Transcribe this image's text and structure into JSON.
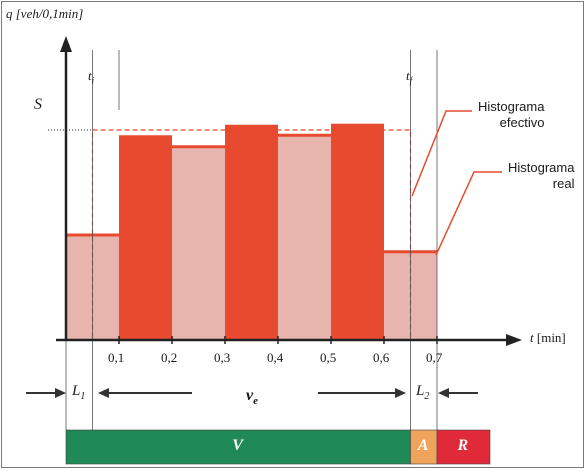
{
  "labels": {
    "y_axis": "q [veh/0,1min]",
    "x_axis": "t [min]",
    "s": "S",
    "ti": "t",
    "ti_sub": "i",
    "tf": "t",
    "tf_sub": "f",
    "l1": "L",
    "l1_sub": "1",
    "l2": "L",
    "l2_sub": "2",
    "ve": "v",
    "ve_sub": "e"
  },
  "legend": {
    "effective_line1": "Histograma",
    "effective_line2": "efectivo",
    "real_line1": "Histograma",
    "real_line2": "real"
  },
  "phase_bar": [
    {
      "label": "V",
      "color": "#1f8a55",
      "start": 0,
      "end": 0.65
    },
    {
      "label": "A",
      "color": "#f0a35a",
      "start": 0.65,
      "end": 0.7
    },
    {
      "label": "R",
      "color": "#e02a3a",
      "start": 0.7,
      "end": 0.8
    }
  ],
  "chart_data": {
    "type": "bar",
    "x_ticks": [
      "0,1",
      "0,2",
      "0,3",
      "0,4",
      "0,5",
      "0,6",
      "0,7"
    ],
    "bins": [
      {
        "start": 0.0,
        "end": 0.1,
        "height": 1.0,
        "fill": "light"
      },
      {
        "start": 0.1,
        "end": 0.2,
        "height": 1.95,
        "fill": "dark"
      },
      {
        "start": 0.2,
        "end": 0.3,
        "height": 1.84,
        "fill": "light"
      },
      {
        "start": 0.3,
        "end": 0.4,
        "height": 2.05,
        "fill": "dark"
      },
      {
        "start": 0.4,
        "end": 0.5,
        "height": 1.95,
        "fill": "light"
      },
      {
        "start": 0.5,
        "end": 0.6,
        "height": 2.06,
        "fill": "dark"
      },
      {
        "start": 0.6,
        "end": 0.7,
        "height": 0.84,
        "fill": "light"
      }
    ],
    "effective": {
      "start": 0.05,
      "end": 0.65,
      "height": 2.0
    },
    "ymax": 2.2,
    "colors": {
      "dark": "#e84a2f",
      "light": "#e8b4ae",
      "edge": "#e84a2f"
    }
  }
}
